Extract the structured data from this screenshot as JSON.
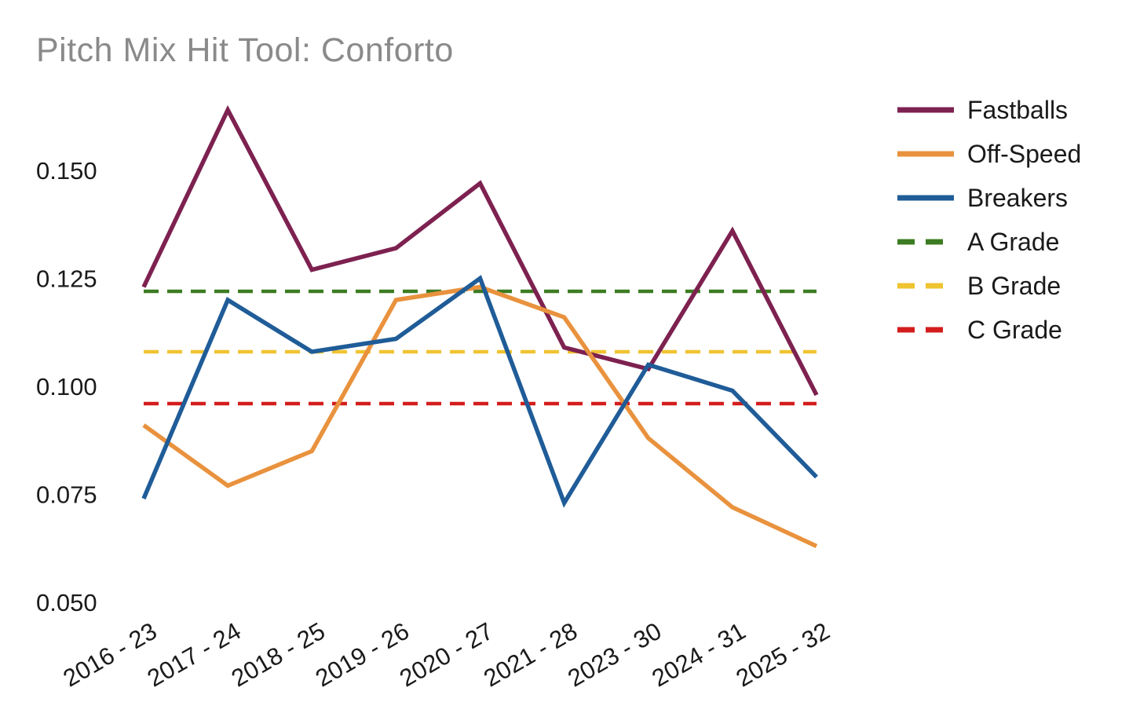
{
  "page": {
    "title": "Pitch Mix Hit Tool: Conforto"
  },
  "chart_data": {
    "type": "line",
    "title": "Pitch Mix Hit Tool: Conforto",
    "categories": [
      "2016 - 23",
      "2017 - 24",
      "2018 - 25",
      "2019 - 26",
      "2020 - 27",
      "2021 - 28",
      "2023 - 30",
      "2024 - 31",
      "2025 - 32"
    ],
    "series": [
      {
        "name": "Fastballs",
        "color": "#7d2150",
        "style": "solid",
        "values": [
          0.123,
          0.164,
          0.127,
          0.132,
          0.147,
          0.109,
          0.104,
          0.136,
          0.098
        ]
      },
      {
        "name": "Off-Speed",
        "color": "#e9923e",
        "style": "solid",
        "values": [
          0.091,
          0.077,
          0.085,
          0.12,
          0.123,
          0.116,
          0.088,
          0.072,
          0.063
        ]
      },
      {
        "name": "Breakers",
        "color": "#1f5c98",
        "style": "solid",
        "values": [
          0.074,
          0.12,
          0.108,
          0.111,
          0.125,
          0.073,
          0.105,
          0.099,
          0.079
        ]
      }
    ],
    "reference_lines": [
      {
        "name": "A Grade",
        "value": 0.122,
        "color": "#3c7c22",
        "style": "dashed"
      },
      {
        "name": "B Grade",
        "value": 0.108,
        "color": "#f0c330",
        "style": "dashed"
      },
      {
        "name": "C Grade",
        "value": 0.096,
        "color": "#d31d1c",
        "style": "dashed"
      }
    ],
    "yticks": [
      "0.150",
      "0.125",
      "0.100",
      "0.075",
      "0.050"
    ],
    "ylim": [
      0.05,
      0.172
    ],
    "xlabel": "",
    "ylabel": "",
    "grid": false,
    "x_tick_rotation": 30,
    "legend_position": "right"
  },
  "legend": {
    "items": [
      {
        "label": "Fastballs",
        "color": "#7d2150",
        "dash": false
      },
      {
        "label": "Off-Speed",
        "color": "#e9923e",
        "dash": false
      },
      {
        "label": "Breakers",
        "color": "#1f5c98",
        "dash": false
      },
      {
        "label": "A Grade",
        "color": "#3c7c22",
        "dash": true
      },
      {
        "label": "B Grade",
        "color": "#f0c330",
        "dash": true
      },
      {
        "label": "C Grade",
        "color": "#d31d1c",
        "dash": true
      }
    ]
  },
  "colors": {
    "background": "#ffffff",
    "title_text": "#8a8a8a",
    "tick_text": "#1a1a1a"
  }
}
